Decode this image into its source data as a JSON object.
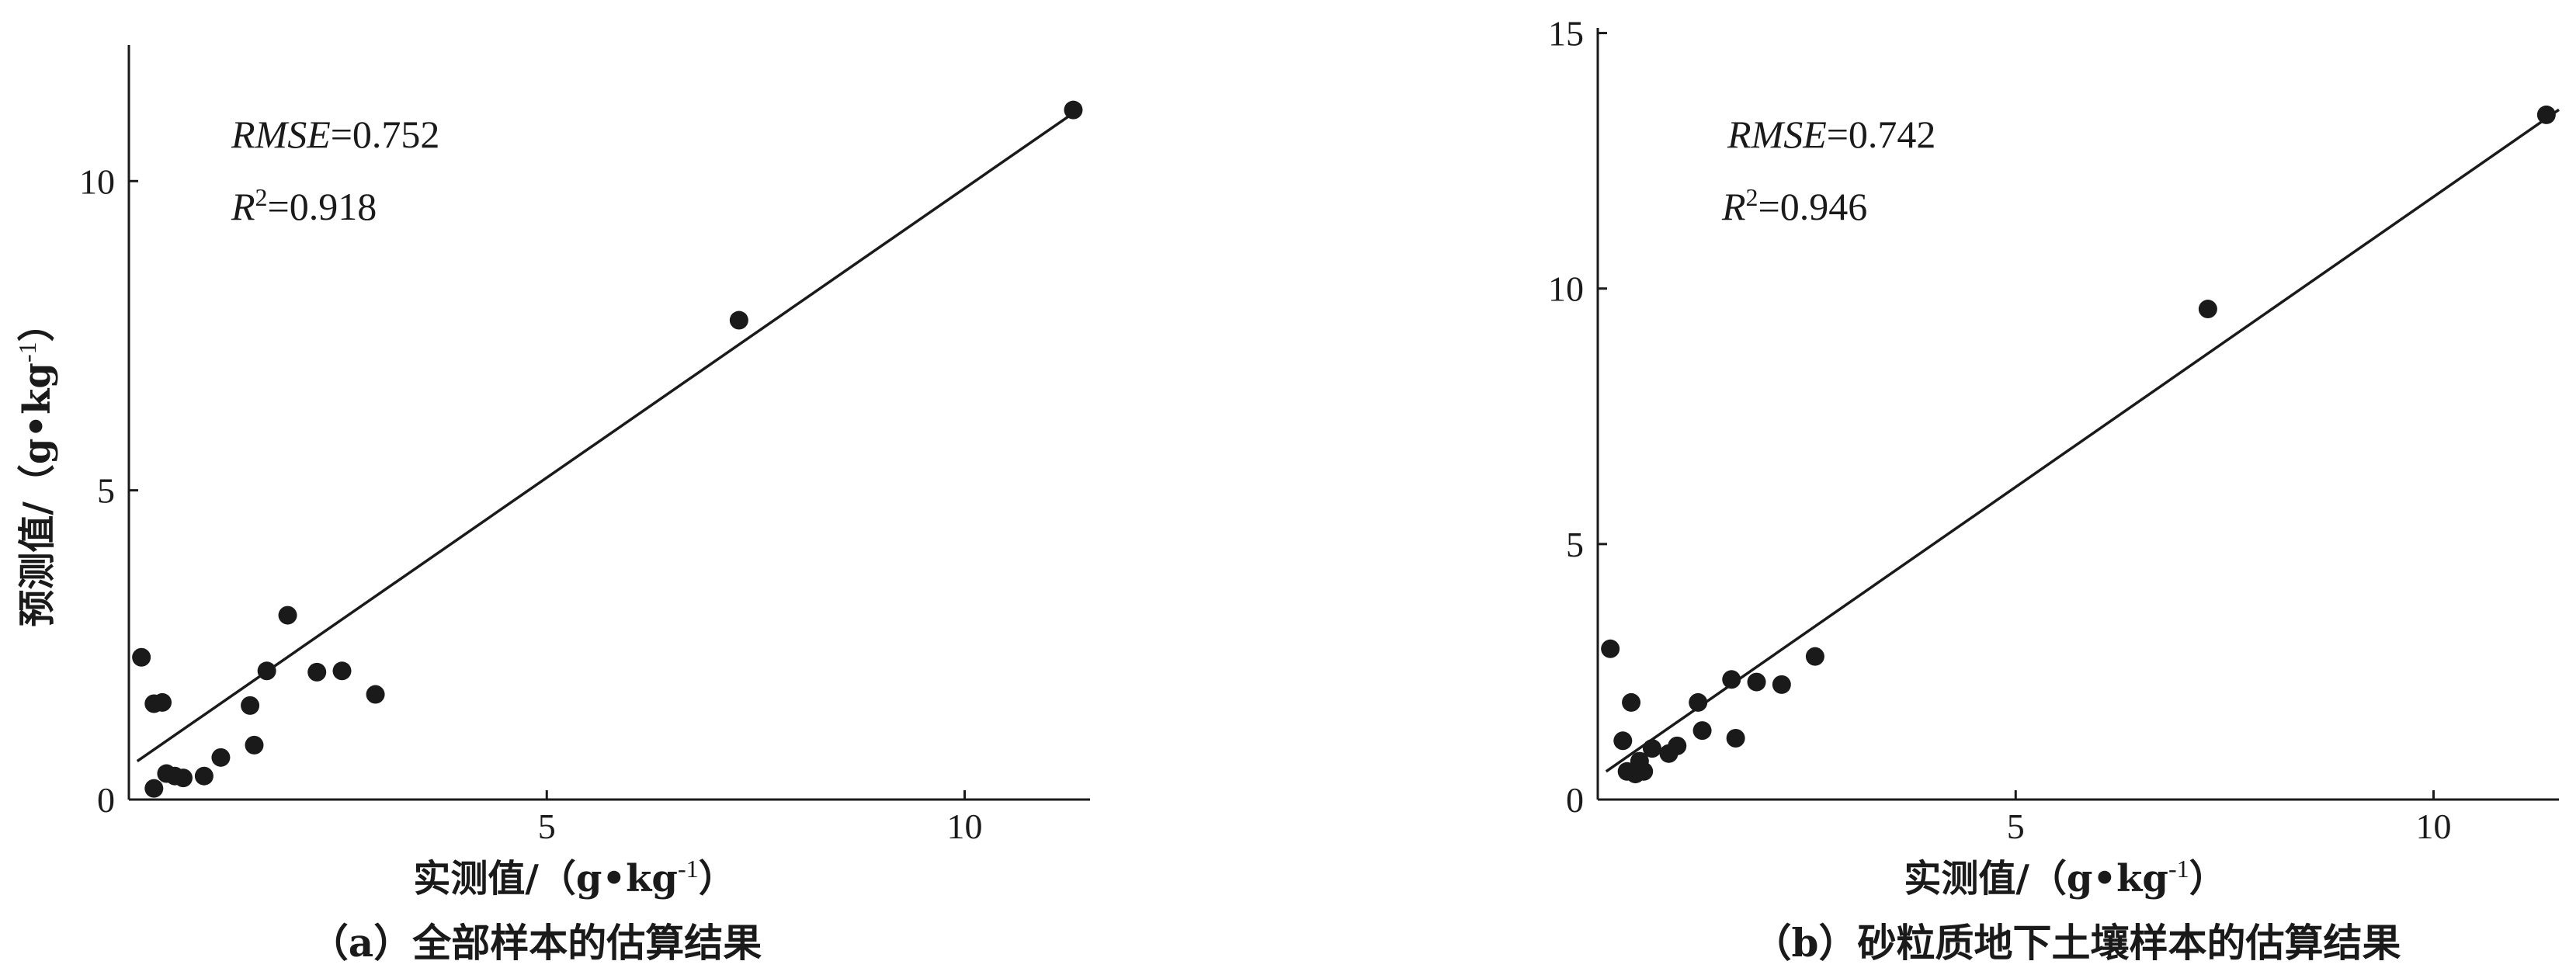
{
  "chart_data": [
    {
      "type": "scatter",
      "caption": "（a）全部样本的估算结果",
      "xlabel": "实测值/（g•kg",
      "xlabel_sup": "-1",
      "xlabel_end": "）",
      "ylabel": "预测值/（g•kg",
      "ylabel_sup": "-1",
      "ylabel_end": "）",
      "xlim": [
        0,
        11.5
      ],
      "ylim": [
        0,
        12.2
      ],
      "xticks": [
        5,
        10
      ],
      "yticks": [
        0,
        5,
        10
      ],
      "x_tick_labels": [
        "5",
        "10"
      ],
      "y_tick_labels": [
        "0",
        "5",
        "10"
      ],
      "stats": {
        "rmse_label": "RMSE",
        "rmse_value": "=0.752",
        "r2_label": "R",
        "r2_sup": "2",
        "r2_value": "=0.918"
      },
      "fit_line": {
        "x": [
          0.1,
          11.3
        ],
        "y": [
          0.62,
          11.1
        ]
      },
      "points": {
        "x": [
          0.15,
          0.3,
          0.4,
          0.3,
          0.45,
          0.55,
          0.65,
          0.9,
          1.1,
          1.45,
          1.5,
          1.9,
          1.65,
          2.25,
          2.55,
          2.95,
          7.3,
          11.3
        ],
        "y": [
          2.3,
          1.55,
          1.57,
          0.18,
          0.42,
          0.38,
          0.35,
          0.38,
          0.68,
          1.52,
          0.88,
          2.98,
          2.08,
          2.06,
          2.08,
          1.7,
          7.75,
          11.15
        ]
      }
    },
    {
      "type": "scatter",
      "caption": "（b）砂粒质地下土壤样本的估算结果",
      "xlabel": "实测值/（g•kg",
      "xlabel_sup": "-1",
      "xlabel_end": "）",
      "xlim": [
        0,
        11.5
      ],
      "ylim": [
        0,
        15.1
      ],
      "xticks": [
        5,
        10
      ],
      "yticks": [
        0,
        5,
        10,
        15
      ],
      "x_tick_labels": [
        "5",
        "10"
      ],
      "y_tick_labels": [
        "0",
        "5",
        "10",
        "15"
      ],
      "stats": {
        "rmse_label": "RMSE",
        "rmse_value": "=0.742",
        "r2_label": "R",
        "r2_sup": "2",
        "r2_value": "=0.946"
      },
      "fit_line": {
        "x": [
          0.1,
          11.5
        ],
        "y": [
          0.55,
          13.5
        ]
      },
      "points": {
        "x": [
          0.15,
          0.3,
          0.35,
          0.4,
          0.45,
          0.55,
          0.5,
          0.65,
          0.85,
          0.95,
          1.2,
          1.25,
          1.6,
          1.65,
          1.9,
          2.2,
          2.6,
          7.3,
          11.35
        ],
        "y": [
          2.95,
          1.15,
          0.55,
          1.9,
          0.5,
          0.55,
          0.75,
          1.0,
          0.9,
          1.05,
          1.9,
          1.35,
          2.35,
          1.2,
          2.3,
          2.25,
          2.8,
          9.6,
          13.4
        ]
      }
    }
  ]
}
